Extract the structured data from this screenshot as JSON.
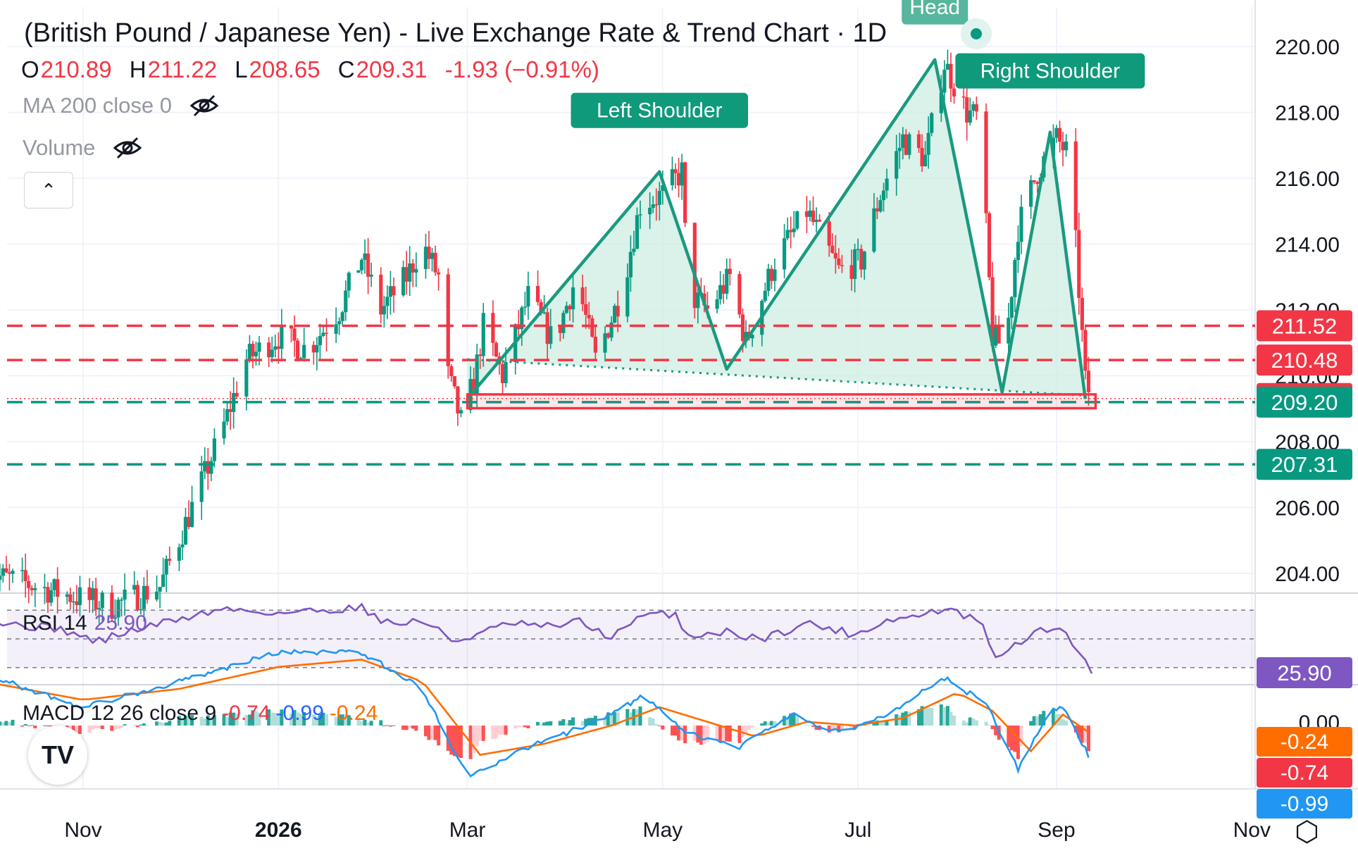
{
  "header": {
    "title": "(British Pound / Japanese Yen) - Live Exchange Rate & Trend Chart · 1D",
    "ohlc": {
      "o_label": "O",
      "o": "210.89",
      "h_label": "H",
      "h": "211.22",
      "l_label": "L",
      "l": "208.65",
      "c_label": "C",
      "c": "209.31",
      "change": "-1.93 (−0.91%)"
    }
  },
  "indicators": {
    "ma": "MA 200 close 0",
    "volume": "Volume",
    "rsi_name": "RSI 14",
    "rsi_value": "25.90",
    "macd_name": "MACD 12 26 close 9",
    "macd_hist": "-0.74",
    "macd_line": "-0.99",
    "macd_signal": "-0.24"
  },
  "colors": {
    "up": "#089981",
    "down": "#f23645",
    "rsi": "#7e57c2",
    "macd": "#2196f3",
    "signal": "#ff6d00",
    "pattern_fill": "#cdeee1"
  },
  "icons": [
    "eye-off-icon",
    "chevron-up-icon",
    "tradingview-logo-icon",
    "settings-icon"
  ],
  "logo": "TV",
  "chart_data": {
    "type": "candlestick",
    "instrument": "GBP/JPY",
    "timeframe": "1D",
    "ylim": [
      203.4,
      221.2
    ],
    "y_ticks": [
      204,
      206,
      208,
      210,
      212,
      214,
      216,
      218,
      220
    ],
    "x_ticks": [
      {
        "label": "Nov",
        "date": "2025-11"
      },
      {
        "label": "2026",
        "date": "2026-01"
      },
      {
        "label": "Mar",
        "date": "2026-03"
      },
      {
        "label": "May",
        "date": "2026-05"
      },
      {
        "label": "Jul",
        "date": "2026-07"
      },
      {
        "label": "Sep",
        "date": "2026-09"
      },
      {
        "label": "Nov",
        "date": "2026-11"
      }
    ],
    "price_path": [
      [
        "2025-10-01",
        204.0
      ],
      [
        "2025-10-10",
        203.8
      ],
      [
        "2025-10-25",
        203.4
      ],
      [
        "2025-11-10",
        203.0
      ],
      [
        "2025-11-25",
        203.6
      ],
      [
        "2025-12-05",
        206.0
      ],
      [
        "2025-12-15",
        208.5
      ],
      [
        "2025-12-22",
        210.5
      ],
      [
        "2026-01-01",
        211.2
      ],
      [
        "2026-01-10",
        210.8
      ],
      [
        "2026-01-20",
        212.0
      ],
      [
        "2026-01-27",
        213.6
      ],
      [
        "2026-02-02",
        212.0
      ],
      [
        "2026-02-10",
        213.0
      ],
      [
        "2026-02-15",
        214.0
      ],
      [
        "2026-02-20",
        213.0
      ],
      [
        "2026-02-23",
        210.0
      ],
      [
        "2026-02-27",
        208.6
      ],
      [
        "2026-03-03",
        209.8
      ],
      [
        "2026-03-06",
        211.5
      ],
      [
        "2026-03-12",
        210.0
      ],
      [
        "2026-03-20",
        212.4
      ],
      [
        "2026-03-28",
        211.0
      ],
      [
        "2026-04-04",
        213.0
      ],
      [
        "2026-04-10",
        210.5
      ],
      [
        "2026-04-18",
        212.5
      ],
      [
        "2026-04-24",
        215.2
      ],
      [
        "2026-05-01",
        215.5
      ],
      [
        "2026-05-07",
        216.2
      ],
      [
        "2026-05-09",
        212.5
      ],
      [
        "2026-05-15",
        212.0
      ],
      [
        "2026-05-22",
        213.0
      ],
      [
        "2026-05-27",
        211.0
      ],
      [
        "2026-06-05",
        213.5
      ],
      [
        "2026-06-15",
        215.0
      ],
      [
        "2026-06-25",
        213.2
      ],
      [
        "2026-07-02",
        213.5
      ],
      [
        "2026-07-08",
        215.5
      ],
      [
        "2026-07-15",
        217.2
      ],
      [
        "2026-07-22",
        216.6
      ],
      [
        "2026-07-28",
        219.5
      ],
      [
        "2026-08-04",
        218.0
      ],
      [
        "2026-08-08",
        217.8
      ],
      [
        "2026-08-12",
        211.2
      ],
      [
        "2026-08-16",
        210.8
      ],
      [
        "2026-08-20",
        214.5
      ],
      [
        "2026-08-26",
        216.2
      ],
      [
        "2026-09-01",
        217.2
      ],
      [
        "2026-09-04",
        216.8
      ],
      [
        "2026-09-07",
        214.0
      ],
      [
        "2026-09-10",
        209.8
      ],
      [
        "2026-09-12",
        209.31
      ]
    ],
    "last": {
      "open": 210.89,
      "high": 211.22,
      "low": 208.65,
      "close": 209.31,
      "change": -1.93,
      "change_pct": -0.91
    },
    "price_markers": [
      {
        "value": 211.52,
        "label": "211.52",
        "color": "#f23645",
        "line": "dashed"
      },
      {
        "value": 210.48,
        "label": "210.48",
        "color": "#f23645",
        "line": "dashed"
      },
      {
        "value": 209.31,
        "label": "209.31",
        "color": "#f23645",
        "line": "dotted"
      },
      {
        "value": 209.2,
        "label": "209.20",
        "color": "#089981",
        "line": "dashed"
      },
      {
        "value": 207.31,
        "label": "207.31",
        "color": "#089981",
        "line": "dashed"
      }
    ],
    "pattern": {
      "name": "Head and Shoulders",
      "points": [
        {
          "date": "2026-03-01",
          "price": 209.3
        },
        {
          "date": "2026-04-30",
          "price": 216.2,
          "label": "Left Shoulder"
        },
        {
          "date": "2026-05-21",
          "price": 210.2
        },
        {
          "date": "2026-07-25",
          "price": 219.6,
          "label": "Head"
        },
        {
          "date": "2026-08-15",
          "price": 209.5
        },
        {
          "date": "2026-08-30",
          "price": 217.4,
          "label": "Right Shoulder"
        },
        {
          "date": "2026-09-10",
          "price": 209.3
        }
      ],
      "neckline": [
        {
          "date": "2026-03-01",
          "price": 210.5
        },
        {
          "date": "2026-09-10",
          "price": 209.4
        }
      ],
      "breakout_zone": {
        "from": "2026-03-01",
        "to": "2026-09-11",
        "low": 209.1,
        "high": 209.35
      }
    },
    "rsi": {
      "ylim": [
        0,
        100
      ],
      "levels": [
        70,
        50,
        30
      ],
      "last": 25.9,
      "path": [
        [
          "2025-10-01",
          63
        ],
        [
          "2025-10-10",
          60
        ],
        [
          "2025-10-25",
          57
        ],
        [
          "2025-11-05",
          48
        ],
        [
          "2025-11-15",
          55
        ],
        [
          "2025-12-01",
          64
        ],
        [
          "2025-12-15",
          71
        ],
        [
          "2026-01-01",
          68
        ],
        [
          "2026-01-15",
          70
        ],
        [
          "2026-01-27",
          72
        ],
        [
          "2026-02-05",
          60
        ],
        [
          "2026-02-15",
          63
        ],
        [
          "2026-02-25",
          48
        ],
        [
          "2026-03-05",
          54
        ],
        [
          "2026-03-15",
          61
        ],
        [
          "2026-03-25",
          58
        ],
        [
          "2026-04-05",
          62
        ],
        [
          "2026-04-15",
          51
        ],
        [
          "2026-04-25",
          66
        ],
        [
          "2026-05-05",
          68
        ],
        [
          "2026-05-08",
          52
        ],
        [
          "2026-05-20",
          55
        ],
        [
          "2026-06-01",
          50
        ],
        [
          "2026-06-15",
          61
        ],
        [
          "2026-06-30",
          53
        ],
        [
          "2026-07-10",
          63
        ],
        [
          "2026-07-20",
          66
        ],
        [
          "2026-07-28",
          71
        ],
        [
          "2026-08-08",
          62
        ],
        [
          "2026-08-14",
          34
        ],
        [
          "2026-08-20",
          48
        ],
        [
          "2026-08-28",
          56
        ],
        [
          "2026-09-02",
          58
        ],
        [
          "2026-09-06",
          48
        ],
        [
          "2026-09-12",
          25.9
        ]
      ]
    },
    "macd": {
      "zero_label": "0.00",
      "macd_line_last": -0.99,
      "signal_last": -0.24,
      "hist_last": -0.74,
      "macd_path": [
        [
          "2025-10-01",
          1.4
        ],
        [
          "2025-11-01",
          0.5
        ],
        [
          "2025-12-01",
          1.2
        ],
        [
          "2026-01-01",
          2.0
        ],
        [
          "2026-01-27",
          2.0
        ],
        [
          "2026-02-15",
          1.0
        ],
        [
          "2026-03-01",
          -1.4
        ],
        [
          "2026-03-20",
          -0.6
        ],
        [
          "2026-04-10",
          0.1
        ],
        [
          "2026-04-25",
          0.8
        ],
        [
          "2026-05-08",
          -0.2
        ],
        [
          "2026-05-25",
          -0.6
        ],
        [
          "2026-06-10",
          0.3
        ],
        [
          "2026-06-25",
          -0.2
        ],
        [
          "2026-07-10",
          0.3
        ],
        [
          "2026-07-28",
          1.3
        ],
        [
          "2026-08-10",
          0.6
        ],
        [
          "2026-08-20",
          -1.2
        ],
        [
          "2026-08-30",
          0.4
        ],
        [
          "2026-09-03",
          0.5
        ],
        [
          "2026-09-12",
          -0.99
        ]
      ],
      "signal_path": [
        [
          "2025-10-01",
          1.2
        ],
        [
          "2025-11-01",
          0.7
        ],
        [
          "2025-12-01",
          1.0
        ],
        [
          "2026-01-01",
          1.6
        ],
        [
          "2026-01-27",
          1.8
        ],
        [
          "2026-02-15",
          1.2
        ],
        [
          "2026-03-05",
          -0.8
        ],
        [
          "2026-03-25",
          -0.5
        ],
        [
          "2026-04-15",
          0.0
        ],
        [
          "2026-04-30",
          0.5
        ],
        [
          "2026-05-15",
          0.1
        ],
        [
          "2026-05-30",
          -0.3
        ],
        [
          "2026-06-15",
          0.1
        ],
        [
          "2026-06-30",
          0.0
        ],
        [
          "2026-07-15",
          0.2
        ],
        [
          "2026-08-01",
          0.9
        ],
        [
          "2026-08-12",
          0.4
        ],
        [
          "2026-08-24",
          -0.7
        ],
        [
          "2026-09-03",
          0.3
        ],
        [
          "2026-09-12",
          -0.24
        ]
      ]
    }
  }
}
